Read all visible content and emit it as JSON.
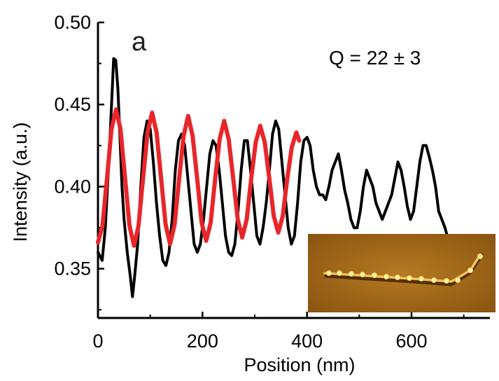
{
  "chart_data": {
    "type": "line",
    "panel_label": "a",
    "annotation": "Q = 22 ± 3",
    "xlabel": "Position (nm)",
    "ylabel": "Intensity (a.u.)",
    "xlim": [
      0,
      750
    ],
    "ylim": [
      0.32,
      0.5
    ],
    "x_ticks": [
      0,
      200,
      400,
      600
    ],
    "y_ticks": [
      0.35,
      0.4,
      0.45,
      0.5
    ],
    "y_tick_labels": [
      "0.35",
      "0.40",
      "0.45",
      "0.50"
    ],
    "grid": false,
    "series": [
      {
        "color": "#000000",
        "x": [
          0,
          8,
          14,
          20,
          26,
          30,
          34,
          38,
          42,
          46,
          50,
          56,
          62,
          66,
          70,
          76,
          82,
          88,
          94,
          100,
          106,
          112,
          118,
          124,
          130,
          136,
          142,
          148,
          154,
          160,
          166,
          172,
          178,
          184,
          190,
          196,
          202,
          208,
          214,
          220,
          226,
          232,
          238,
          244,
          250,
          256,
          262,
          268,
          274,
          280,
          286,
          292,
          298,
          304,
          310,
          316,
          322,
          328,
          334,
          340,
          346,
          352,
          358,
          364,
          370,
          376,
          382,
          388,
          394,
          400,
          406,
          412,
          418,
          424,
          430,
          436,
          442,
          448,
          454,
          460,
          466,
          472,
          478,
          484,
          490,
          496,
          502,
          508,
          514,
          520,
          526,
          532,
          538,
          544,
          550,
          556,
          562,
          568,
          574,
          580,
          586,
          592,
          598,
          604,
          610,
          616,
          622,
          628,
          634,
          640,
          646,
          652,
          658,
          664,
          670
        ],
        "y": [
          0.36,
          0.355,
          0.375,
          0.41,
          0.45,
          0.478,
          0.477,
          0.46,
          0.43,
          0.4,
          0.38,
          0.36,
          0.345,
          0.333,
          0.345,
          0.365,
          0.4,
          0.43,
          0.44,
          0.435,
          0.415,
          0.39,
          0.37,
          0.355,
          0.352,
          0.36,
          0.38,
          0.41,
          0.428,
          0.432,
          0.425,
          0.405,
          0.385,
          0.365,
          0.36,
          0.365,
          0.38,
          0.4,
          0.42,
          0.428,
          0.425,
          0.41,
          0.39,
          0.37,
          0.36,
          0.358,
          0.365,
          0.385,
          0.41,
          0.428,
          0.428,
          0.41,
          0.39,
          0.37,
          0.365,
          0.375,
          0.39,
          0.41,
          0.432,
          0.44,
          0.435,
          0.415,
          0.395,
          0.375,
          0.365,
          0.37,
          0.39,
          0.415,
          0.428,
          0.43,
          0.425,
          0.41,
          0.4,
          0.395,
          0.395,
          0.392,
          0.4,
          0.41,
          0.415,
          0.42,
          0.41,
          0.398,
          0.39,
          0.38,
          0.375,
          0.375,
          0.385,
          0.4,
          0.41,
          0.405,
          0.4,
          0.39,
          0.385,
          0.38,
          0.385,
          0.39,
          0.395,
          0.405,
          0.415,
          0.41,
          0.4,
          0.388,
          0.38,
          0.385,
          0.4,
          0.415,
          0.425,
          0.425,
          0.418,
          0.41,
          0.4,
          0.385,
          0.38,
          0.375,
          0.368
        ]
      },
      {
        "color": "#e8262a",
        "function": "0.39 + (0.043 - 0.0000447*x) * sin(2*pi*(x - 34)/69 + pi/2)",
        "x_range": [
          0,
          385
        ],
        "x": [
          0,
          8.6,
          17.3,
          25.9,
          34.5,
          43.1,
          51.8,
          60.4,
          69,
          77.6,
          86.3,
          94.9,
          103.5,
          112.1,
          120.8,
          129.4,
          138,
          146.6,
          155.3,
          163.9,
          172.5,
          181.1,
          189.8,
          198.4,
          207,
          215.6,
          224.3,
          232.9,
          241.5,
          250.1,
          258.8,
          267.4,
          276,
          284.6,
          293.3,
          301.9,
          310.5,
          319.1,
          327.8,
          336.4,
          345,
          353.6,
          362.3,
          370.9,
          379.5,
          385
        ],
        "y": [
          0.366,
          0.376,
          0.405,
          0.435,
          0.447,
          0.435,
          0.405,
          0.376,
          0.364,
          0.376,
          0.405,
          0.433,
          0.445,
          0.433,
          0.405,
          0.377,
          0.365,
          0.377,
          0.405,
          0.431,
          0.443,
          0.431,
          0.405,
          0.378,
          0.367,
          0.378,
          0.405,
          0.429,
          0.44,
          0.429,
          0.405,
          0.38,
          0.369,
          0.38,
          0.405,
          0.427,
          0.437,
          0.427,
          0.405,
          0.382,
          0.372,
          0.382,
          0.405,
          0.424,
          0.433,
          0.428
        ]
      }
    ],
    "inset": {
      "description_visible": "AFM image"
    }
  }
}
